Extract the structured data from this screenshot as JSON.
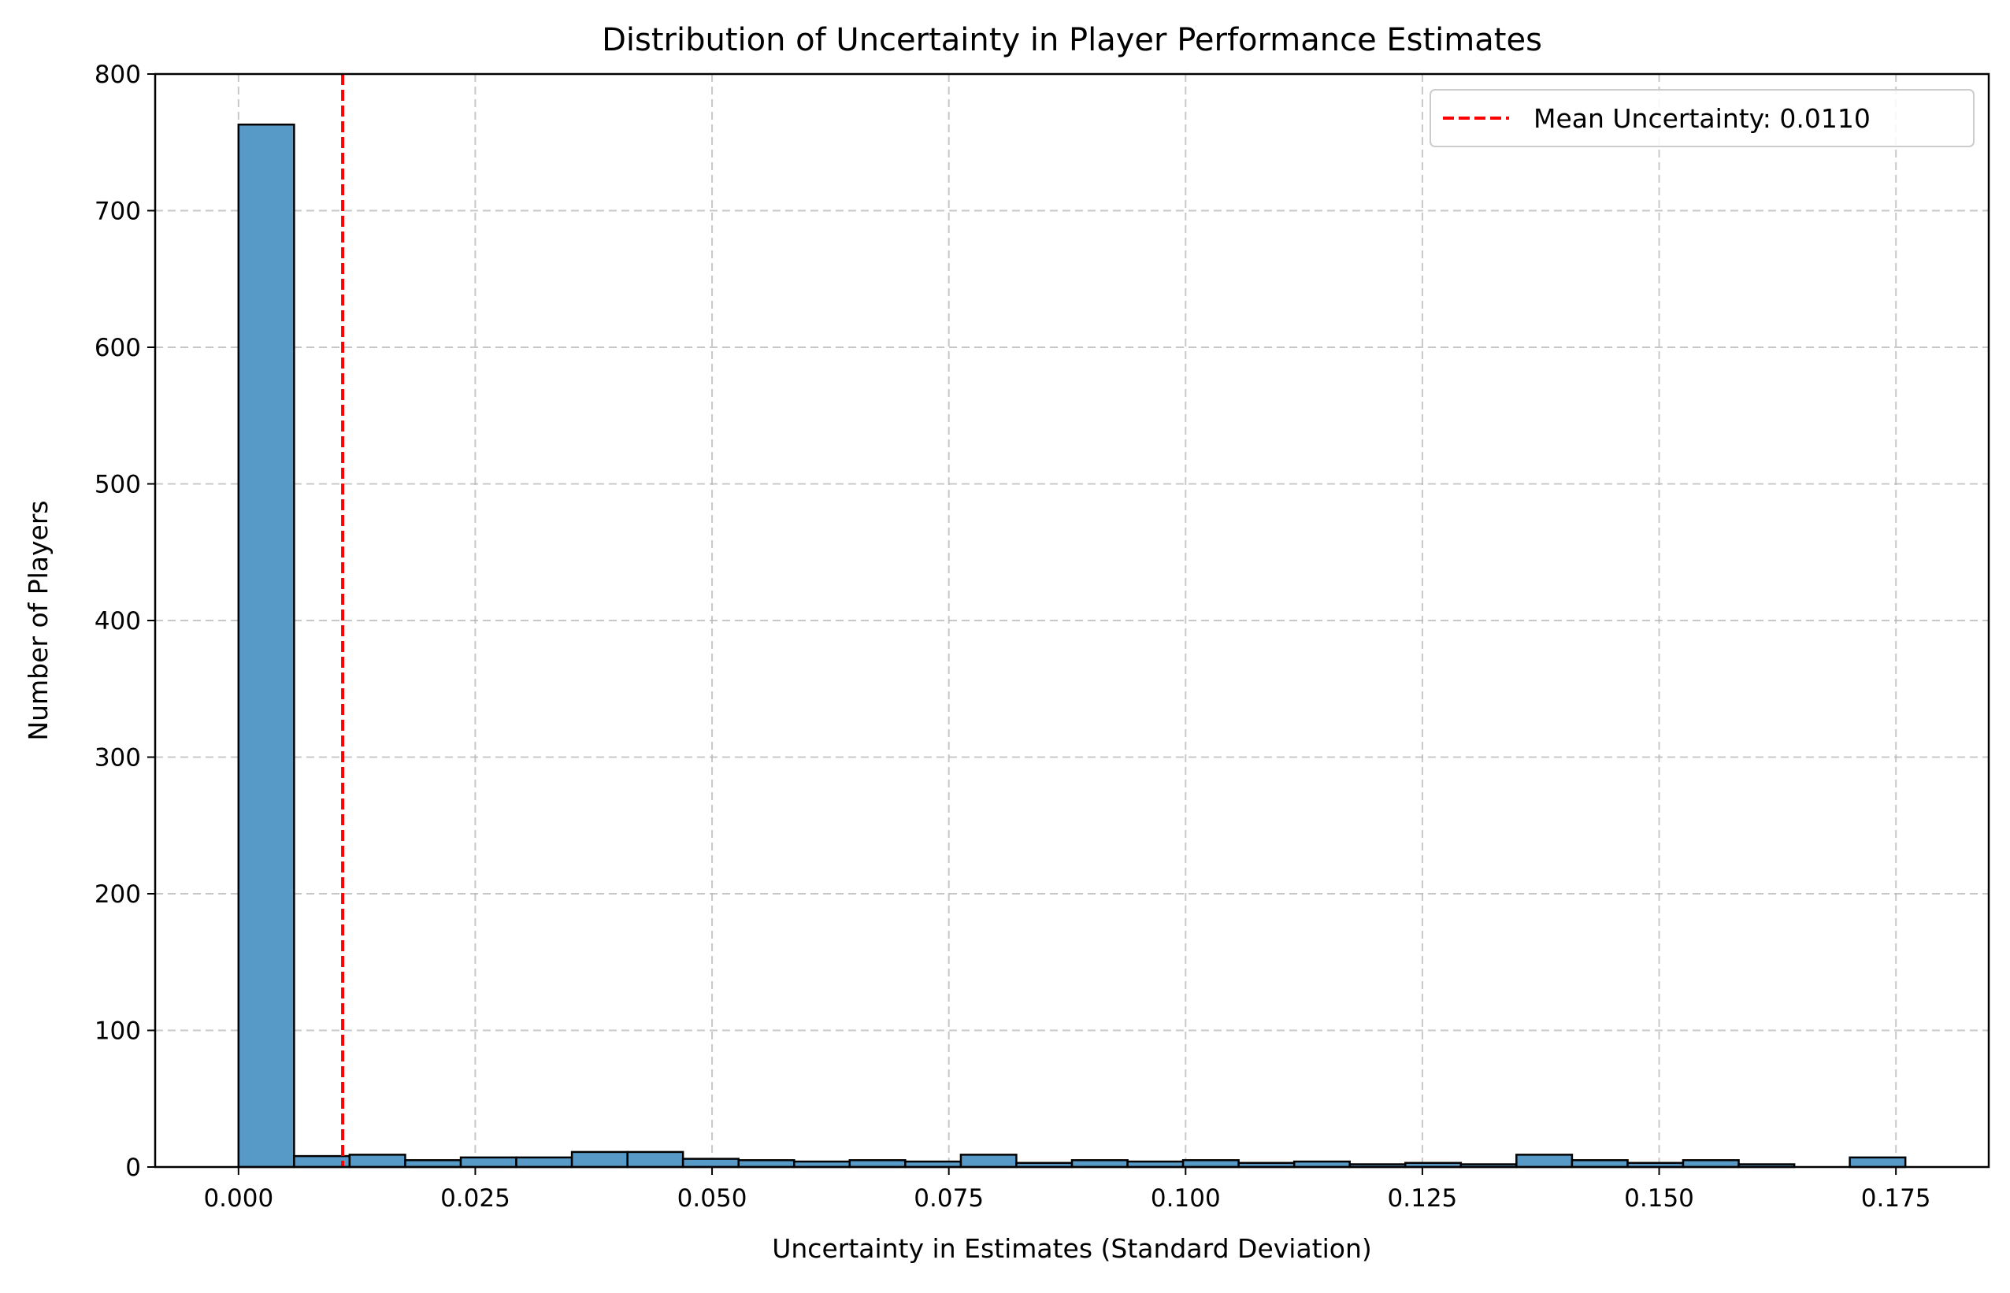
{
  "chart_data": {
    "type": "bar",
    "title": "Distribution of Uncertainty in Player Performance Estimates",
    "xlabel": "Uncertainty in Estimates (Standard Deviation)",
    "ylabel": "Number of Players",
    "xlim": [
      -0.0088,
      0.1848
    ],
    "ylim": [
      0,
      800
    ],
    "xticks": [
      0.0,
      0.025,
      0.05,
      0.075,
      0.1,
      0.125,
      0.15,
      0.175
    ],
    "xtick_labels": [
      "0.000",
      "0.025",
      "0.050",
      "0.075",
      "0.100",
      "0.125",
      "0.150",
      "0.175"
    ],
    "yticks": [
      0,
      100,
      200,
      300,
      400,
      500,
      600,
      700,
      800
    ],
    "ytick_labels": [
      "0",
      "100",
      "200",
      "300",
      "400",
      "500",
      "600",
      "700",
      "800"
    ],
    "grid": true,
    "bin_edges": [
      0.0,
      0.00587,
      0.01173,
      0.0176,
      0.02347,
      0.02933,
      0.0352,
      0.04107,
      0.04693,
      0.0528,
      0.05867,
      0.06453,
      0.0704,
      0.07627,
      0.08213,
      0.088,
      0.09387,
      0.09973,
      0.1056,
      0.11147,
      0.11733,
      0.1232,
      0.12907,
      0.13493,
      0.1408,
      0.14667,
      0.15253,
      0.1584,
      0.16427,
      0.17013,
      0.176
    ],
    "counts": [
      763,
      8,
      9,
      5,
      7,
      7,
      11,
      11,
      6,
      5,
      4,
      5,
      4,
      9,
      3,
      5,
      4,
      5,
      3,
      4,
      2,
      3,
      2,
      9,
      5,
      3,
      5,
      2,
      0,
      7
    ],
    "bar_color": "#5799c7",
    "bar_edge_color": "#000000",
    "mean_line": {
      "value": 0.011,
      "label": "Mean Uncertainty: 0.0110",
      "color": "#ff0000",
      "style": "dashed"
    },
    "legend_position": "top-right"
  }
}
